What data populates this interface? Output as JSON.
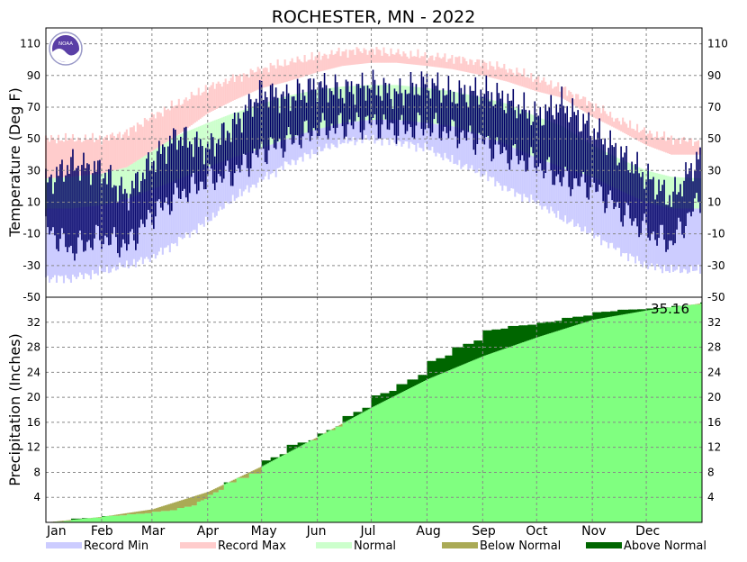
{
  "colors": {
    "record_min": "#ccccff",
    "record_max": "#ffcccc",
    "normal": "#ccffcc",
    "observed_temp": "#000066",
    "precip_normal_fill": "#80ff80",
    "precip_above": "#006600",
    "precip_below": "#aaaa55",
    "noaa_logo": "#5a3fa6"
  },
  "logo_icon": "noaa-logo-icon",
  "logo_text": "NOAA",
  "chart_data": [
    {
      "type": "area",
      "title": "ROCHESTER, MN - 2022",
      "ylabel": "Temperature (Deg F)",
      "ylim": [
        -50,
        120
      ],
      "yticks": [
        110,
        90,
        70,
        50,
        30,
        10,
        -10,
        -30,
        -50
      ],
      "grid": true,
      "x": [
        1,
        15,
        32,
        46,
        60,
        74,
        91,
        105,
        121,
        135,
        152,
        166,
        182,
        196,
        213,
        227,
        244,
        258,
        274,
        288,
        305,
        319,
        335,
        349,
        365
      ],
      "series": [
        {
          "name": "Record Max",
          "role": "band",
          "low": [
            25,
            26,
            28,
            32,
            42,
            52,
            66,
            74,
            82,
            86,
            92,
            96,
            98,
            98,
            96,
            94,
            90,
            86,
            80,
            76,
            64,
            56,
            46,
            40,
            40
          ],
          "high": [
            50,
            50,
            50,
            54,
            64,
            72,
            82,
            88,
            94,
            98,
            102,
            105,
            106,
            104,
            102,
            101,
            98,
            94,
            88,
            82,
            72,
            62,
            54,
            50,
            48
          ]
        },
        {
          "name": "Normal",
          "role": "band",
          "low": [
            6,
            6,
            8,
            12,
            18,
            24,
            32,
            38,
            44,
            50,
            56,
            60,
            62,
            62,
            60,
            58,
            52,
            46,
            38,
            32,
            26,
            18,
            10,
            6,
            6
          ],
          "high": [
            25,
            26,
            28,
            32,
            42,
            52,
            60,
            66,
            72,
            77,
            81,
            83,
            84,
            84,
            82,
            80,
            76,
            72,
            64,
            58,
            46,
            38,
            30,
            26,
            25
          ]
        },
        {
          "name": "Record Min",
          "role": "band",
          "low": [
            -38,
            -38,
            -34,
            -30,
            -25,
            -15,
            -2,
            12,
            24,
            34,
            42,
            48,
            50,
            48,
            44,
            36,
            28,
            18,
            10,
            0,
            -10,
            -20,
            -30,
            -33,
            -33
          ],
          "high": [
            6,
            6,
            8,
            12,
            18,
            24,
            32,
            38,
            44,
            50,
            56,
            60,
            62,
            62,
            60,
            58,
            52,
            46,
            38,
            32,
            26,
            18,
            10,
            6,
            6
          ]
        },
        {
          "role": "observed_high",
          "values": [
            22,
            34,
            30,
            14,
            36,
            52,
            44,
            58,
            80,
            76,
            84,
            80,
            84,
            78,
            86,
            78,
            80,
            74,
            64,
            72,
            56,
            42,
            26,
            12,
            40
          ]
        },
        {
          "role": "observed_low",
          "values": [
            -6,
            -20,
            -12,
            -18,
            2,
            14,
            24,
            28,
            42,
            48,
            56,
            58,
            60,
            56,
            58,
            54,
            48,
            40,
            34,
            24,
            20,
            6,
            -8,
            -16,
            12
          ]
        }
      ],
      "xticks": [
        "Jan",
        "Feb",
        "Mar",
        "Apr",
        "May",
        "Jun",
        "Jul",
        "Aug",
        "Sep",
        "Oct",
        "Nov",
        "Dec"
      ]
    },
    {
      "type": "area",
      "ylabel": "Precipitation (Inches)",
      "ylim": [
        0,
        36
      ],
      "yticks": [
        32,
        28,
        24,
        20,
        16,
        12,
        8,
        4
      ],
      "grid": true,
      "final_total_label": "35.16",
      "normal_cumulative": {
        "x": [
          1,
          32,
          60,
          91,
          121,
          152,
          182,
          213,
          244,
          274,
          305,
          335,
          365
        ],
        "values": [
          0,
          0.9,
          2.1,
          4.9,
          9.0,
          13.7,
          18.4,
          22.9,
          26.6,
          29.6,
          32.4,
          33.9,
          35.0
        ]
      },
      "observed_cumulative": {
        "x": [
          1,
          15,
          32,
          46,
          60,
          74,
          85,
          91,
          100,
          121,
          135,
          152,
          166,
          182,
          196,
          213,
          227,
          244,
          258,
          274,
          288,
          305,
          319,
          335,
          349,
          365
        ],
        "values": [
          0,
          0.6,
          1.0,
          1.3,
          1.7,
          2.3,
          3.3,
          4.4,
          6.4,
          9.9,
          12.4,
          14.2,
          17.0,
          20.3,
          22.1,
          25.8,
          28.0,
          30.7,
          31.4,
          31.9,
          32.7,
          33.6,
          34.0,
          34.2,
          34.6,
          35.16
        ]
      },
      "xticks": [
        "Jan",
        "Feb",
        "Mar",
        "Apr",
        "May",
        "Jun",
        "Jul",
        "Aug",
        "Sep",
        "Oct",
        "Nov",
        "Dec"
      ]
    }
  ],
  "legend": [
    {
      "label": "Record Min",
      "color_key": "record_min"
    },
    {
      "label": "Record Max",
      "color_key": "record_max"
    },
    {
      "label": "Normal",
      "color_key": "normal"
    },
    {
      "label": "Below Normal",
      "color_key": "precip_below"
    },
    {
      "label": "Above Normal",
      "color_key": "precip_above"
    }
  ]
}
